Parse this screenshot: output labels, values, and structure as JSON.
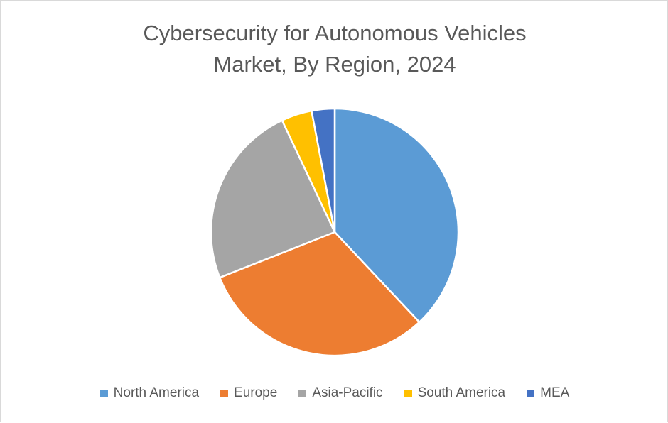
{
  "chart_data": {
    "type": "pie",
    "title_lines": [
      "Cybersecurity for Autonomous Vehicles",
      "Market, By Region, 2024"
    ],
    "categories": [
      "North America",
      "Europe",
      "Asia-Pacific",
      "South America",
      "MEA"
    ],
    "values": [
      38,
      31,
      24,
      4,
      3
    ],
    "colors": [
      "#5B9BD5",
      "#ED7D31",
      "#A5A5A5",
      "#FFC000",
      "#4472C4"
    ],
    "legend_position": "bottom",
    "start_angle_deg": 0,
    "direction": "clockwise"
  }
}
